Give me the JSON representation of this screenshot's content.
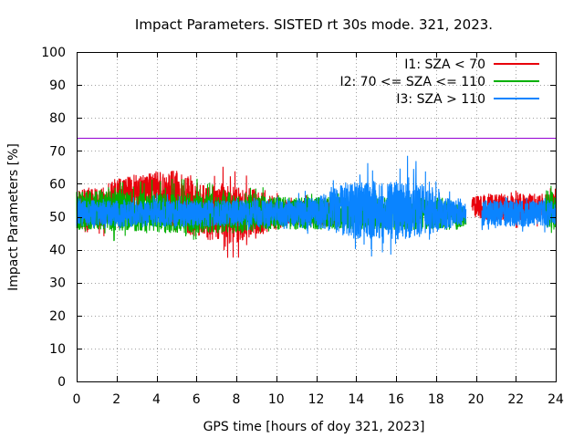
{
  "chart_data": {
    "type": "line",
    "title": "Impact Parameters. SISTED rt 30s mode. 321, 2023.",
    "xlabel": "GPS time [hours of doy 321, 2023]",
    "ylabel": "Impact Parameters [%]",
    "xlim": [
      0,
      24
    ],
    "ylim": [
      0,
      100
    ],
    "xticks": [
      0,
      2,
      4,
      6,
      8,
      10,
      12,
      14,
      16,
      18,
      20,
      22,
      24
    ],
    "yticks": [
      0,
      10,
      20,
      30,
      40,
      50,
      60,
      70,
      80,
      90,
      100
    ],
    "grid": true,
    "legend_position": "top-right",
    "reference_line": {
      "y": 74,
      "color": "#9400d3"
    },
    "series": [
      {
        "name": "I1: SZA < 70",
        "color": "#e8000b",
        "segments": [
          {
            "x": [
              0.0,
              0.5,
              1.0,
              1.5,
              2.0,
              2.5,
              3.0,
              3.5,
              4.0,
              4.5,
              5.0,
              5.5,
              6.0,
              6.5,
              7.0,
              7.5,
              8.0,
              8.5,
              9.0,
              9.5,
              10.0,
              10.5,
              11.0,
              11.5,
              12.0,
              12.5,
              13.0
            ],
            "center": [
              52,
              52,
              53,
              53,
              56,
              57,
              58,
              58,
              59,
              58,
              56,
              54,
              52,
              51,
              51,
              51,
              51,
              51,
              51,
              51,
              51,
              51,
              51,
              51,
              51,
              51,
              51
            ],
            "amp": [
              6,
              7,
              6,
              6,
              6,
              5,
              5,
              5,
              5,
              6,
              8,
              9,
              9,
              8,
              9,
              10,
              9,
              8,
              7,
              6,
              5,
              4,
              4,
              4,
              4,
              4,
              4
            ],
            "spike_max": [
              61,
              60,
              60,
              61,
              62,
              61,
              60,
              61,
              62,
              63,
              64,
              64,
              65,
              64,
              64,
              66,
              66,
              63,
              61,
              59,
              58,
              57,
              57,
              57,
              56,
              56,
              56
            ],
            "spike_min": [
              44,
              44,
              42,
              43,
              45,
              46,
              47,
              48,
              49,
              48,
              45,
              44,
              43,
              42,
              40,
              38,
              34,
              40,
              43,
              45,
              46,
              47,
              47,
              47,
              47,
              47,
              47
            ]
          },
          {
            "x": [
              19.8,
              20.5,
              21.0,
              21.5,
              22.0,
              22.5,
              23.0,
              23.5,
              24.0
            ],
            "center": [
              53,
              53,
              53,
              53,
              53,
              53,
              53,
              53,
              53
            ],
            "amp": [
              3,
              4,
              4,
              4,
              4,
              4,
              4,
              4,
              4
            ],
            "spike_max": [
              55,
              58,
              58,
              58,
              59,
              58,
              58,
              59,
              60
            ],
            "spike_min": [
              51,
              47,
              47,
              47,
              46,
              46,
              46,
              47,
              48
            ]
          }
        ]
      },
      {
        "name": "I2: 70 <= SZA <= 110",
        "color": "#00b000",
        "segments": [
          {
            "x": [
              0.0,
              0.5,
              1.0,
              1.5,
              2.0,
              2.5,
              3.0,
              3.5,
              4.0,
              4.5,
              5.0,
              5.5,
              6.0,
              6.5,
              7.0,
              7.5,
              8.0,
              8.5,
              9.0,
              9.5,
              10.0,
              10.5,
              11.0,
              11.5,
              12.0,
              12.5,
              13.0,
              13.5,
              14.0,
              14.5,
              15.0,
              15.5,
              16.0,
              16.5,
              17.0,
              17.5,
              18.0,
              18.5,
              19.0,
              19.5
            ],
            "center": [
              52,
              52,
              52,
              52,
              52,
              52,
              51,
              51,
              51,
              51,
              51,
              51,
              51,
              51,
              51,
              51,
              51,
              51,
              51,
              51,
              51,
              51,
              51,
              51,
              51,
              51,
              51,
              51,
              51,
              51,
              51,
              51,
              51,
              51,
              51,
              51,
              51,
              51,
              50,
              50
            ],
            "amp": [
              6,
              6,
              6,
              6,
              7,
              6,
              6,
              6,
              6,
              6,
              6,
              6,
              6,
              6,
              6,
              6,
              6,
              6,
              6,
              5,
              5,
              5,
              5,
              5,
              5,
              5,
              5,
              5,
              5,
              5,
              5,
              5,
              5,
              5,
              5,
              5,
              5,
              5,
              4,
              3
            ],
            "spike_max": [
              62,
              61,
              61,
              63,
              66,
              62,
              61,
              62,
              61,
              62,
              63,
              62,
              62,
              63,
              62,
              61,
              61,
              61,
              60,
              59,
              58,
              57,
              57,
              57,
              58,
              57,
              58,
              58,
              57,
              58,
              58,
              57,
              57,
              57,
              56,
              56,
              56,
              55,
              54,
              52
            ],
            "spike_min": [
              41,
              42,
              42,
              43,
              42,
              43,
              38,
              42,
              43,
              43,
              43,
              43,
              43,
              43,
              44,
              44,
              44,
              44,
              45,
              45,
              46,
              46,
              46,
              46,
              46,
              46,
              46,
              46,
              46,
              46,
              46,
              46,
              46,
              46,
              46,
              46,
              47,
              47,
              48,
              49
            ]
          },
          {
            "x": [
              23.5,
              23.8,
              24.0
            ],
            "center": [
              52,
              52,
              52
            ],
            "amp": [
              6,
              7,
              6
            ],
            "spike_max": [
              60,
              64,
              60
            ],
            "spike_min": [
              44,
              39,
              45
            ]
          }
        ]
      },
      {
        "name": "I3: SZA > 110",
        "color": "#0a84ff",
        "segments": [
          {
            "x": [
              0.0,
              0.5,
              1.0,
              1.5,
              2.0,
              2.5,
              3.0,
              3.5,
              4.0,
              4.5,
              5.0,
              5.5,
              6.0,
              6.5,
              7.0,
              7.5,
              8.0,
              8.5,
              9.0,
              9.5,
              10.0,
              10.5,
              11.0,
              11.5,
              12.0,
              12.5,
              13.0,
              13.5,
              14.0,
              14.5,
              15.0,
              15.5,
              16.0,
              16.5,
              17.0,
              17.5,
              18.0,
              18.5,
              19.0,
              19.5
            ],
            "center": [
              51,
              51,
              51,
              51,
              51,
              51,
              51,
              51,
              51,
              51,
              51,
              51,
              51,
              51,
              51,
              51,
              51,
              51,
              51,
              51,
              51,
              51,
              51,
              51,
              51,
              52,
              52,
              52,
              52,
              52,
              52,
              52,
              52,
              52,
              52,
              52,
              51,
              51,
              51,
              51
            ],
            "amp": [
              4,
              4,
              4,
              4,
              4,
              4,
              4,
              4,
              4,
              4,
              4,
              4,
              4,
              4,
              4,
              4,
              4,
              4,
              4,
              4,
              4,
              4,
              4,
              5,
              5,
              6,
              7,
              8,
              9,
              9,
              9,
              9,
              9,
              9,
              8,
              7,
              6,
              5,
              4,
              3
            ],
            "spike_max": [
              56,
              56,
              56,
              56,
              56,
              56,
              56,
              56,
              57,
              57,
              57,
              56,
              56,
              56,
              56,
              56,
              56,
              56,
              56,
              56,
              56,
              57,
              57,
              58,
              59,
              60,
              63,
              66,
              67,
              66,
              68,
              70,
              71,
              69,
              67,
              64,
              61,
              59,
              57,
              55
            ],
            "spike_min": [
              46,
              46,
              46,
              46,
              46,
              46,
              46,
              46,
              46,
              46,
              46,
              46,
              46,
              46,
              46,
              46,
              46,
              46,
              46,
              46,
              46,
              46,
              45,
              44,
              43,
              42,
              41,
              40,
              39,
              38,
              37,
              38,
              38,
              39,
              40,
              42,
              44,
              46,
              47,
              48
            ]
          },
          {
            "x": [
              20.3,
              20.5,
              21.0,
              21.5,
              22.0,
              22.5,
              23.0,
              23.5,
              24.0
            ],
            "center": [
              51,
              51,
              51,
              51,
              51,
              51,
              51,
              51,
              51
            ],
            "amp": [
              4,
              4,
              4,
              4,
              4,
              4,
              4,
              4,
              4
            ],
            "spike_max": [
              57,
              57,
              56,
              56,
              57,
              57,
              57,
              57,
              57
            ],
            "spike_min": [
              45,
              45,
              45,
              45,
              45,
              44,
              45,
              45,
              46
            ]
          }
        ]
      }
    ]
  }
}
